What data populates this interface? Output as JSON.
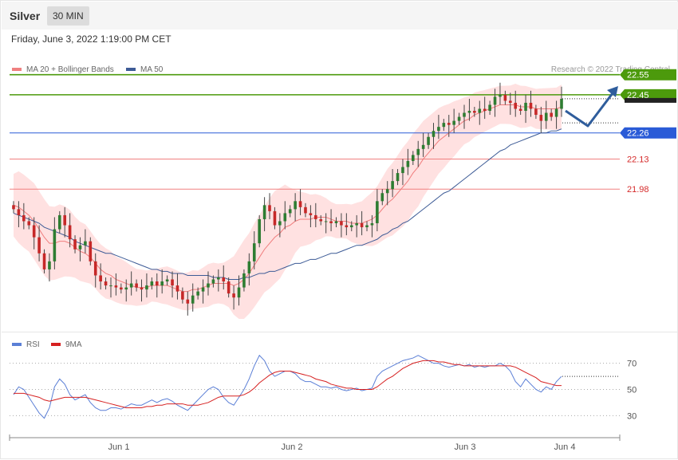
{
  "header": {
    "title": "Silver",
    "timeframe": "30 MIN",
    "datetime": "Friday, June 3, 2022 1:19:00 PM CET"
  },
  "legend": {
    "ma20": "MA 20 + Bollinger Bands",
    "ma50": "MA 50",
    "rsi": "RSI",
    "rsi_ma": "9MA",
    "copyright": "Research © 2022 Trading Central"
  },
  "colors": {
    "target": "#4c9a0c",
    "pivot": "#2a5bd7",
    "support": "#f08080",
    "support_text": "#d52b2b",
    "ma50": "#3d5b96",
    "ma20": "#f07d7d",
    "band": "#ffe1e1",
    "candle_up": "#2e7d32",
    "candle_down": "#c62828",
    "rsi": "#5b7fd6",
    "rsi_ma": "#d62020",
    "arrow": "#2f5d9c"
  },
  "chart_data": [
    {
      "type": "candlestick",
      "title": "Silver",
      "timeframe": "30 MIN",
      "x_ticks": [
        "Jun 1",
        "Jun 2",
        "Jun 3",
        "Jun 4"
      ],
      "levels": [
        {
          "label": "22.55",
          "value": 22.55,
          "role": "target"
        },
        {
          "label": "22.45",
          "value": 22.45,
          "role": "target"
        },
        {
          "label": "22.26",
          "value": 22.26,
          "role": "pivot"
        },
        {
          "label": "22.13",
          "value": 22.13,
          "role": "support"
        },
        {
          "label": "21.98",
          "value": 21.98,
          "role": "support"
        }
      ],
      "last_price": 22.43,
      "ylim": [
        21.25,
        22.66
      ],
      "series_close": [
        21.88,
        21.85,
        21.82,
        21.8,
        21.74,
        21.66,
        21.58,
        21.62,
        21.78,
        21.85,
        21.8,
        21.73,
        21.68,
        21.7,
        21.72,
        21.62,
        21.55,
        21.52,
        21.5,
        21.5,
        21.49,
        21.48,
        21.49,
        21.51,
        21.49,
        21.48,
        21.5,
        21.52,
        21.5,
        21.52,
        21.53,
        21.5,
        21.47,
        21.43,
        21.41,
        21.45,
        21.47,
        21.49,
        21.51,
        21.53,
        21.54,
        21.52,
        21.46,
        21.44,
        21.49,
        21.56,
        21.62,
        21.71,
        21.83,
        21.9,
        21.87,
        21.8,
        21.82,
        21.86,
        21.88,
        21.92,
        21.89,
        21.86,
        21.85,
        21.83,
        21.82,
        21.82,
        21.81,
        21.82,
        21.8,
        21.79,
        21.8,
        21.81,
        21.79,
        21.8,
        21.81,
        21.92,
        21.96,
        21.98,
        22.02,
        22.06,
        22.09,
        22.12,
        22.15,
        22.18,
        22.2,
        22.24,
        22.27,
        22.29,
        22.31,
        22.3,
        22.32,
        22.34,
        22.36,
        22.37,
        22.36,
        22.38,
        22.37,
        22.4,
        22.44,
        22.45,
        22.42,
        22.41,
        22.38,
        22.37,
        22.41,
        22.38,
        22.35,
        22.32,
        22.36,
        22.34,
        22.38,
        22.43
      ],
      "ma20": [
        21.9,
        21.89,
        21.87,
        21.85,
        21.82,
        21.78,
        21.74,
        21.71,
        21.71,
        21.72,
        21.72,
        21.71,
        21.69,
        21.67,
        21.66,
        21.64,
        21.61,
        21.58,
        21.56,
        21.55,
        21.53,
        21.52,
        21.51,
        21.5,
        21.49,
        21.49,
        21.49,
        21.5,
        21.5,
        21.5,
        21.5,
        21.49,
        21.48,
        21.47,
        21.47,
        21.48,
        21.48,
        21.49,
        21.5,
        21.51,
        21.51,
        21.51,
        21.51,
        21.5,
        21.51,
        21.53,
        21.56,
        21.6,
        21.64,
        21.68,
        21.71,
        21.74,
        21.76,
        21.79,
        21.8,
        21.82,
        21.83,
        21.83,
        21.83,
        21.84,
        21.84,
        21.84,
        21.83,
        21.82,
        21.82,
        21.82,
        21.81,
        21.81,
        21.81,
        21.82,
        21.83,
        21.85,
        21.88,
        21.91,
        21.93,
        21.96,
        21.99,
        22.02,
        22.06,
        22.09,
        22.13,
        22.16,
        22.19,
        22.22,
        22.24,
        22.26,
        22.28,
        22.3,
        22.32,
        22.33,
        22.35,
        22.36,
        22.37,
        22.38,
        22.39,
        22.4,
        22.4,
        22.4,
        22.4,
        22.39,
        22.39,
        22.39,
        22.38,
        22.38,
        22.38,
        22.38,
        22.38,
        22.39
      ],
      "ma50": [
        21.86,
        21.85,
        21.84,
        21.83,
        21.82,
        21.81,
        21.79,
        21.78,
        21.77,
        21.76,
        21.75,
        21.74,
        21.72,
        21.71,
        21.7,
        21.69,
        21.68,
        21.67,
        21.66,
        21.66,
        21.65,
        21.64,
        21.63,
        21.62,
        21.61,
        21.6,
        21.59,
        21.58,
        21.58,
        21.57,
        21.57,
        21.56,
        21.56,
        21.56,
        21.55,
        21.55,
        21.55,
        21.55,
        21.55,
        21.54,
        21.54,
        21.54,
        21.53,
        21.53,
        21.53,
        21.54,
        21.54,
        21.55,
        21.56,
        21.56,
        21.57,
        21.57,
        21.58,
        21.59,
        21.6,
        21.61,
        21.61,
        21.62,
        21.63,
        21.63,
        21.64,
        21.65,
        21.66,
        21.66,
        21.67,
        21.68,
        21.69,
        21.7,
        21.7,
        21.71,
        21.72,
        21.73,
        21.75,
        21.76,
        21.78,
        21.79,
        21.81,
        21.82,
        21.84,
        21.86,
        21.88,
        21.9,
        21.92,
        21.94,
        21.96,
        21.97,
        21.99,
        22.01,
        22.03,
        22.05,
        22.07,
        22.09,
        22.11,
        22.13,
        22.15,
        22.17,
        22.18,
        22.2,
        22.21,
        22.22,
        22.23,
        22.24,
        22.25,
        22.26,
        22.26,
        22.27,
        22.27,
        22.28
      ]
    },
    {
      "type": "line",
      "title": "RSI",
      "x_ticks": [
        "Jun 1",
        "Jun 2",
        "Jun 3",
        "Jun 4"
      ],
      "y_ticks": [
        30,
        50,
        70
      ],
      "ylim": [
        15,
        85
      ],
      "series": [
        {
          "name": "RSI",
          "values": [
            46,
            52,
            50,
            44,
            38,
            32,
            28,
            36,
            52,
            58,
            54,
            46,
            42,
            44,
            46,
            40,
            36,
            34,
            34,
            36,
            36,
            35,
            37,
            39,
            38,
            38,
            40,
            42,
            40,
            42,
            43,
            41,
            38,
            36,
            34,
            38,
            42,
            46,
            50,
            52,
            50,
            44,
            40,
            38,
            44,
            50,
            58,
            68,
            76,
            72,
            64,
            60,
            62,
            64,
            64,
            62,
            58,
            56,
            56,
            54,
            52,
            52,
            51,
            52,
            50,
            49,
            50,
            51,
            49,
            50,
            51,
            60,
            64,
            66,
            68,
            70,
            72,
            73,
            74,
            76,
            74,
            72,
            70,
            70,
            68,
            67,
            68,
            69,
            68,
            69,
            67,
            68,
            67,
            68,
            68,
            70,
            68,
            64,
            56,
            52,
            58,
            54,
            50,
            48,
            52,
            50,
            56,
            60
          ]
        },
        {
          "name": "9MA",
          "values": [
            47,
            47,
            47,
            46,
            45,
            44,
            42,
            41,
            42,
            43,
            44,
            44,
            44,
            44,
            44,
            43,
            42,
            41,
            40,
            39,
            38,
            37,
            36,
            36,
            36,
            36,
            37,
            37,
            38,
            38,
            39,
            39,
            39,
            39,
            38,
            38,
            38,
            39,
            40,
            42,
            44,
            45,
            45,
            45,
            45,
            46,
            48,
            51,
            55,
            58,
            61,
            63,
            64,
            64,
            64,
            63,
            62,
            61,
            60,
            58,
            57,
            56,
            54,
            53,
            52,
            51,
            51,
            50,
            50,
            50,
            50,
            52,
            55,
            58,
            60,
            63,
            66,
            68,
            70,
            71,
            72,
            72,
            72,
            71,
            71,
            70,
            69,
            69,
            68,
            68,
            68,
            68,
            68,
            68,
            68,
            68,
            68,
            68,
            67,
            65,
            63,
            61,
            59,
            56,
            55,
            54,
            53,
            53
          ]
        }
      ]
    }
  ]
}
